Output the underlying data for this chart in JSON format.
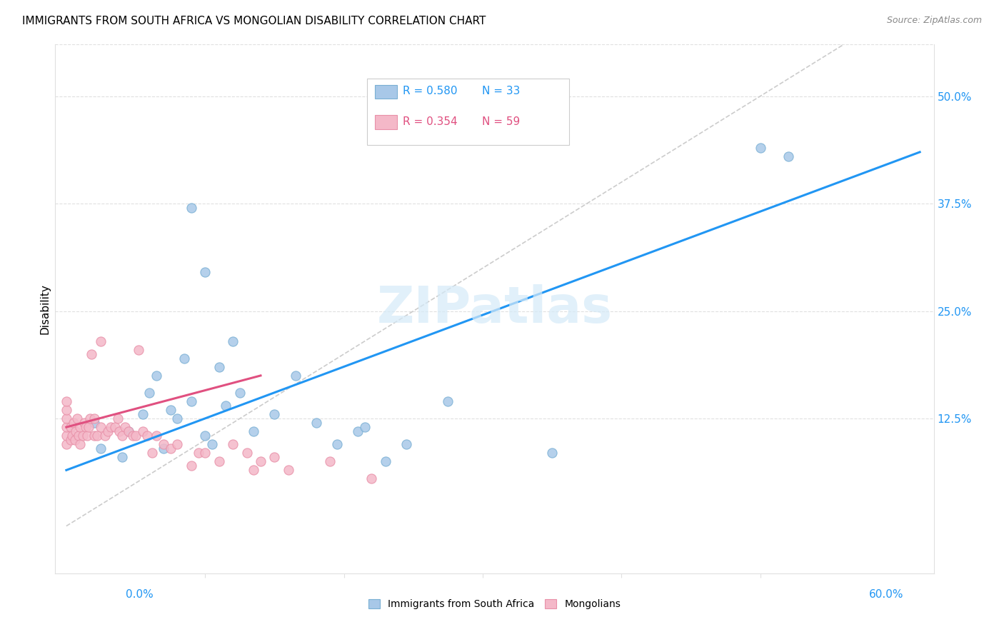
{
  "title": "IMMIGRANTS FROM SOUTH AFRICA VS MONGOLIAN DISABILITY CORRELATION CHART",
  "source": "Source: ZipAtlas.com",
  "ylabel": "Disability",
  "ytick_labels": [
    "12.5%",
    "25.0%",
    "37.5%",
    "50.0%"
  ],
  "ytick_values": [
    0.125,
    0.25,
    0.375,
    0.5
  ],
  "xlim": [
    -0.008,
    0.625
  ],
  "ylim": [
    -0.055,
    0.56
  ],
  "legend_blue_R": "R = 0.580",
  "legend_blue_N": "N = 33",
  "legend_pink_R": "R = 0.354",
  "legend_pink_N": "N = 59",
  "blue_color": "#a8c8e8",
  "blue_edge_color": "#7ab0d4",
  "pink_color": "#f4b8c8",
  "pink_edge_color": "#e890a8",
  "blue_line_color": "#2196F3",
  "pink_line_color": "#e05080",
  "dash_color": "#cccccc",
  "watermark_color": "#d5eaf8",
  "grid_color": "#e0e0e0",
  "axis_label_color": "#2196F3",
  "watermark": "ZIPatlas",
  "blue_line_x": [
    0.0,
    0.615
  ],
  "blue_line_y": [
    0.065,
    0.435
  ],
  "pink_line_x": [
    0.0,
    0.14
  ],
  "pink_line_y": [
    0.115,
    0.175
  ],
  "dash_line_x": [
    0.0,
    0.56
  ],
  "dash_line_y": [
    0.0,
    0.56
  ],
  "blue_scatter_x": [
    0.02,
    0.025,
    0.04,
    0.045,
    0.055,
    0.06,
    0.065,
    0.07,
    0.075,
    0.08,
    0.085,
    0.09,
    0.09,
    0.1,
    0.1,
    0.105,
    0.11,
    0.115,
    0.12,
    0.125,
    0.135,
    0.15,
    0.165,
    0.18,
    0.195,
    0.21,
    0.215,
    0.23,
    0.245,
    0.275,
    0.35,
    0.5,
    0.52
  ],
  "blue_scatter_y": [
    0.12,
    0.09,
    0.08,
    0.11,
    0.13,
    0.155,
    0.175,
    0.09,
    0.135,
    0.125,
    0.195,
    0.145,
    0.37,
    0.105,
    0.295,
    0.095,
    0.185,
    0.14,
    0.215,
    0.155,
    0.11,
    0.13,
    0.175,
    0.12,
    0.095,
    0.11,
    0.115,
    0.075,
    0.095,
    0.145,
    0.085,
    0.44,
    0.43
  ],
  "pink_scatter_x": [
    0.0,
    0.0,
    0.0,
    0.0,
    0.0,
    0.0,
    0.003,
    0.003,
    0.004,
    0.005,
    0.006,
    0.007,
    0.008,
    0.009,
    0.01,
    0.01,
    0.012,
    0.013,
    0.014,
    0.015,
    0.016,
    0.017,
    0.018,
    0.02,
    0.02,
    0.022,
    0.025,
    0.025,
    0.028,
    0.03,
    0.032,
    0.035,
    0.037,
    0.038,
    0.04,
    0.042,
    0.045,
    0.048,
    0.05,
    0.052,
    0.055,
    0.058,
    0.062,
    0.065,
    0.07,
    0.075,
    0.08,
    0.09,
    0.095,
    0.1,
    0.11,
    0.12,
    0.13,
    0.135,
    0.14,
    0.15,
    0.16,
    0.19,
    0.22
  ],
  "pink_scatter_y": [
    0.095,
    0.105,
    0.115,
    0.125,
    0.135,
    0.145,
    0.1,
    0.115,
    0.105,
    0.12,
    0.1,
    0.11,
    0.125,
    0.105,
    0.095,
    0.115,
    0.105,
    0.12,
    0.115,
    0.105,
    0.115,
    0.125,
    0.2,
    0.105,
    0.125,
    0.105,
    0.115,
    0.215,
    0.105,
    0.11,
    0.115,
    0.115,
    0.125,
    0.11,
    0.105,
    0.115,
    0.11,
    0.105,
    0.105,
    0.205,
    0.11,
    0.105,
    0.085,
    0.105,
    0.095,
    0.09,
    0.095,
    0.07,
    0.085,
    0.085,
    0.075,
    0.095,
    0.085,
    0.065,
    0.075,
    0.08,
    0.065,
    0.075,
    0.055
  ]
}
